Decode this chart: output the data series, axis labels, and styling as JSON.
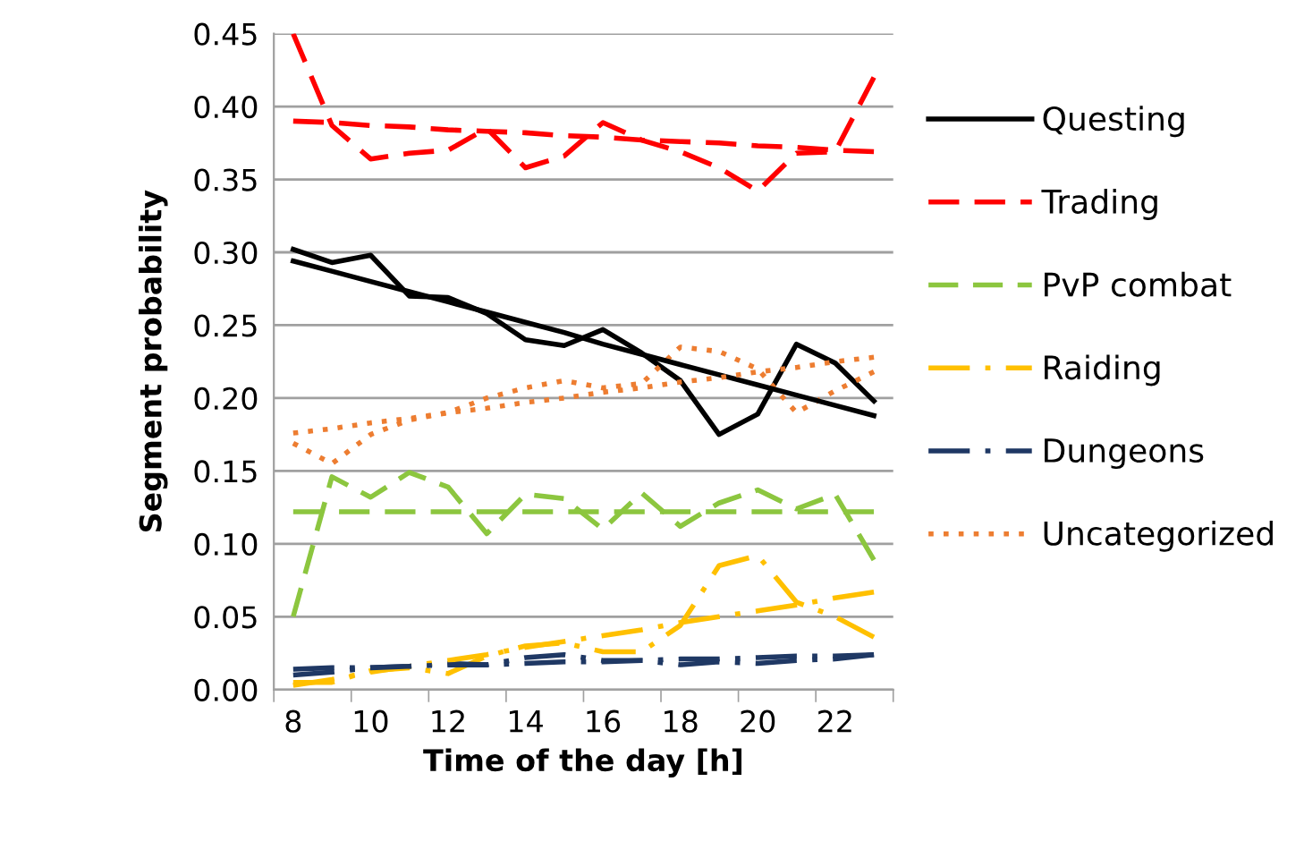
{
  "chart_data": {
    "type": "line",
    "xlabel": "Time of the day [h]",
    "ylabel": "Segment probability",
    "x": [
      8,
      9,
      10,
      11,
      12,
      13,
      14,
      15,
      16,
      17,
      18,
      19,
      20,
      21,
      22,
      23
    ],
    "xlim": [
      7.5,
      23.5
    ],
    "xticks": [
      {
        "value": 7.5,
        "label": null
      },
      8,
      {
        "value": 9.5,
        "label": null
      },
      10,
      {
        "value": 11.5,
        "label": null
      },
      12,
      {
        "value": 13.5,
        "label": null
      },
      14,
      {
        "value": 15.5,
        "label": null
      },
      16,
      {
        "value": 17.5,
        "label": null
      },
      18,
      {
        "value": 19.5,
        "label": null
      },
      20,
      {
        "value": 21.5,
        "label": null
      },
      22,
      {
        "value": 23.5,
        "label": null
      }
    ],
    "ylim": [
      0,
      0.45
    ],
    "yticks": [
      {
        "value": 0,
        "label": "0.00"
      },
      {
        "value": 0.05,
        "label": "0.05"
      },
      {
        "value": 0.1,
        "label": "0.10"
      },
      {
        "value": 0.15,
        "label": "0.15"
      },
      {
        "value": 0.2,
        "label": "0.20"
      },
      {
        "value": 0.25,
        "label": "0.25"
      },
      {
        "value": 0.3,
        "label": "0.30"
      },
      {
        "value": 0.35,
        "label": "0.35"
      },
      {
        "value": 0.4,
        "label": "0.40"
      },
      {
        "value": 0.45,
        "label": "0.45"
      }
    ],
    "grid": "y",
    "legend": "right",
    "series": [
      {
        "name": "Questing",
        "color": "#000000",
        "line_style": "solid",
        "values": [
          0.302,
          0.293,
          0.298,
          0.27,
          0.269,
          0.258,
          0.24,
          0.236,
          0.247,
          0.231,
          0.212,
          0.175,
          0.189,
          0.237,
          0.224,
          0.198
        ]
      },
      {
        "name": "Trading",
        "color": "#ff0000",
        "line_style": "dashed",
        "values": [
          0.45,
          0.387,
          0.364,
          0.368,
          0.37,
          0.385,
          0.358,
          0.366,
          0.389,
          0.377,
          0.369,
          0.358,
          0.342,
          0.368,
          0.369,
          0.42
        ]
      },
      {
        "name": "PvP combat",
        "color": "#8cc63f",
        "line_style": "dashed",
        "values": [
          0.05,
          0.146,
          0.132,
          0.149,
          0.139,
          0.107,
          0.134,
          0.131,
          0.11,
          0.135,
          0.112,
          0.128,
          0.137,
          0.124,
          0.134,
          0.089
        ]
      },
      {
        "name": "Raiding",
        "color": "#ffc000",
        "line_style": "dashdot",
        "values": [
          0.005,
          0.005,
          0.013,
          0.015,
          0.011,
          0.023,
          0.03,
          0.032,
          0.026,
          0.026,
          0.044,
          0.085,
          0.092,
          0.06,
          0.05,
          0.036
        ]
      },
      {
        "name": "Dungeons",
        "color": "#1f3864",
        "line_style": "dashdot",
        "values": [
          0.01,
          0.012,
          0.015,
          0.016,
          0.018,
          0.017,
          0.022,
          0.024,
          0.02,
          0.02,
          0.017,
          0.019,
          0.018,
          0.02,
          0.021,
          0.024
        ]
      },
      {
        "name": "Uncategorized",
        "color": "#ed7d31",
        "line_style": "dotted",
        "values": [
          0.169,
          0.155,
          0.175,
          0.185,
          0.19,
          0.2,
          0.207,
          0.212,
          0.207,
          0.21,
          0.235,
          0.232,
          0.22,
          0.19,
          0.205,
          0.218
        ]
      },
      {
        "color": "#000000",
        "line_style": "solid",
        "values": [
          0.294,
          0.287,
          0.28,
          0.273,
          0.266,
          0.259,
          0.252,
          0.245,
          0.237,
          0.23,
          0.223,
          0.216,
          0.209,
          0.202,
          0.195,
          0.188
        ]
      },
      {
        "color": "#ff0000",
        "line_style": "dashed",
        "values": [
          0.39,
          0.389,
          0.387,
          0.386,
          0.384,
          0.383,
          0.382,
          0.38,
          0.379,
          0.377,
          0.376,
          0.375,
          0.373,
          0.372,
          0.37,
          0.369
        ]
      },
      {
        "color": "#8cc63f",
        "line_style": "dashed",
        "values": [
          0.122,
          0.122,
          0.122,
          0.122,
          0.122,
          0.122,
          0.122,
          0.122,
          0.122,
          0.122,
          0.122,
          0.122,
          0.122,
          0.122,
          0.122,
          0.122
        ]
      },
      {
        "color": "#ffc000",
        "line_style": "dashdot",
        "values": [
          0.003,
          0.007,
          0.012,
          0.016,
          0.02,
          0.024,
          0.029,
          0.033,
          0.037,
          0.041,
          0.046,
          0.05,
          0.054,
          0.058,
          0.063,
          0.067
        ]
      },
      {
        "color": "#1f3864",
        "line_style": "dashdot",
        "values": [
          0.014,
          0.015,
          0.015,
          0.016,
          0.017,
          0.017,
          0.018,
          0.019,
          0.019,
          0.02,
          0.021,
          0.021,
          0.022,
          0.023,
          0.023,
          0.024
        ]
      },
      {
        "color": "#ed7d31",
        "line_style": "dotted",
        "values": [
          0.176,
          0.179,
          0.183,
          0.186,
          0.19,
          0.193,
          0.197,
          0.2,
          0.204,
          0.207,
          0.211,
          0.214,
          0.218,
          0.221,
          0.225,
          0.228
        ]
      }
    ]
  }
}
